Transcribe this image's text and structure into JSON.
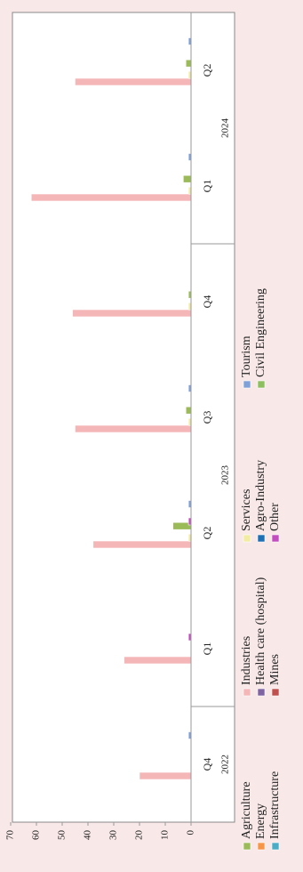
{
  "chart_data": {
    "type": "bar",
    "orientation": "horizontal",
    "title": "",
    "xlabel": "",
    "ylabel": "",
    "value_axis": {
      "min": 0,
      "max": 70,
      "ticks": [
        "0",
        "10",
        "20",
        "30",
        "40",
        "50",
        "60",
        "70"
      ]
    },
    "categories": [
      "Q4",
      "Q1",
      "Q2",
      "Q3",
      "Q4",
      "Q1",
      "Q2"
    ],
    "category_groups": [
      {
        "label": "2022",
        "count": 1
      },
      {
        "label": "2023",
        "count": 4
      },
      {
        "label": "2024",
        "count": 2
      }
    ],
    "series": [
      {
        "name": "Agriculture",
        "color": "#9bbb59",
        "values": [
          0,
          0,
          7,
          2,
          1,
          3,
          2
        ]
      },
      {
        "name": "Energy",
        "color": "#f79646",
        "values": [
          0,
          0,
          0,
          0,
          0,
          0,
          0
        ]
      },
      {
        "name": "Infrastructure",
        "color": "#4bacc6",
        "values": [
          0,
          0,
          0,
          0,
          0,
          0,
          0
        ]
      },
      {
        "name": "Industries",
        "color": "#f4b6b6",
        "values": [
          20,
          26,
          38,
          45,
          46,
          62,
          45
        ]
      },
      {
        "name": "Health care (hospital)",
        "color": "#8064a2",
        "values": [
          0,
          0,
          0,
          0,
          0,
          0,
          0
        ]
      },
      {
        "name": "Mines",
        "color": "#c0504d",
        "values": [
          0,
          0,
          0,
          0,
          0,
          0,
          0
        ]
      },
      {
        "name": "Services",
        "color": "#f2eba2",
        "values": [
          0,
          0,
          1,
          1,
          1,
          1,
          1
        ]
      },
      {
        "name": "Agro-Industry",
        "color": "#1f6fb4",
        "values": [
          0,
          0,
          0,
          0,
          0,
          0,
          0
        ]
      },
      {
        "name": "Other",
        "color": "#c34dbf",
        "values": [
          0,
          1,
          1,
          0,
          0,
          0,
          0
        ]
      },
      {
        "name": "Tourism",
        "color": "#7fa1d8",
        "values": [
          1,
          0,
          1,
          1,
          0,
          1,
          1
        ]
      },
      {
        "name": "Civil Engineering",
        "color": "#8dbf5e",
        "values": [
          0,
          0,
          0,
          0,
          0,
          0,
          0
        ]
      }
    ],
    "grid": false,
    "legend_position": "bottom"
  }
}
